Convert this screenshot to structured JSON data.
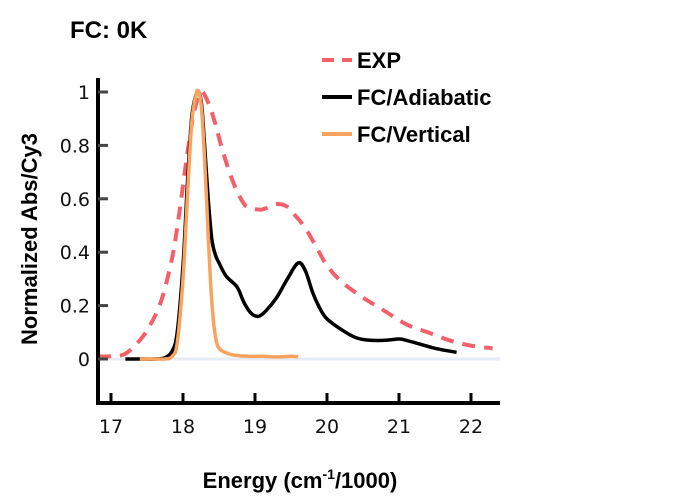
{
  "chart_data": {
    "type": "line",
    "title": "FC: 0K",
    "xlabel": "Energy (cm",
    "xlabel_sup": "-1",
    "xlabel_tail": "/1000)",
    "ylabel": "Normalized Abs/Cy3",
    "xlim": [
      16.82,
      22.4
    ],
    "ylim": [
      -0.16,
      1.05
    ],
    "xticks": [
      17,
      18,
      19,
      20,
      21,
      22
    ],
    "xtick_labels": [
      "17",
      "18",
      "19",
      "20",
      "21",
      "22"
    ],
    "yticks": [
      0,
      0.2,
      0.4,
      0.6,
      0.8,
      1
    ],
    "ytick_labels": [
      "0",
      "0.2",
      "0.4",
      "0.6",
      "0.8",
      "1"
    ],
    "grid": false,
    "zero_line": true,
    "legend_position": "top-right",
    "series": [
      {
        "name": "EXP",
        "color": "#f4606a",
        "style": "dashed",
        "x": [
          16.82,
          17.0,
          17.2,
          17.4,
          17.55,
          17.7,
          17.85,
          17.95,
          18.05,
          18.15,
          18.25,
          18.35,
          18.45,
          18.55,
          18.7,
          18.85,
          18.95,
          19.1,
          19.3,
          19.45,
          19.55,
          19.7,
          19.85,
          20.0,
          20.2,
          20.5,
          20.8,
          21.1,
          21.4,
          21.7,
          22.0,
          22.3
        ],
        "y": [
          0.01,
          0.01,
          0.02,
          0.07,
          0.13,
          0.22,
          0.38,
          0.55,
          0.75,
          0.92,
          1.0,
          0.96,
          0.88,
          0.78,
          0.66,
          0.58,
          0.565,
          0.56,
          0.58,
          0.57,
          0.54,
          0.49,
          0.42,
          0.35,
          0.29,
          0.23,
          0.18,
          0.13,
          0.1,
          0.07,
          0.05,
          0.04
        ]
      },
      {
        "name": "FC/Adiabatic",
        "color": "#000000",
        "style": "solid",
        "x": [
          17.2,
          17.4,
          17.6,
          17.75,
          17.85,
          17.92,
          18.0,
          18.06,
          18.12,
          18.18,
          18.22,
          18.26,
          18.3,
          18.35,
          18.4,
          18.45,
          18.5,
          18.6,
          18.75,
          18.85,
          18.95,
          19.05,
          19.15,
          19.3,
          19.45,
          19.6,
          19.7,
          19.8,
          19.9,
          20.0,
          20.2,
          20.4,
          20.6,
          20.8,
          21.0,
          21.1,
          21.3,
          21.5,
          21.8
        ],
        "y": [
          0.0,
          0.0,
          0.0,
          0.005,
          0.03,
          0.1,
          0.35,
          0.65,
          0.9,
          0.99,
          1.0,
          0.95,
          0.8,
          0.6,
          0.45,
          0.39,
          0.36,
          0.31,
          0.27,
          0.21,
          0.17,
          0.16,
          0.18,
          0.23,
          0.3,
          0.36,
          0.33,
          0.25,
          0.19,
          0.15,
          0.11,
          0.08,
          0.07,
          0.07,
          0.075,
          0.07,
          0.055,
          0.04,
          0.025
        ]
      },
      {
        "name": "FC/Vertical",
        "color": "#f9a35e",
        "style": "solid",
        "x": [
          17.4,
          17.6,
          17.75,
          17.85,
          17.92,
          18.0,
          18.06,
          18.12,
          18.18,
          18.22,
          18.26,
          18.3,
          18.34,
          18.38,
          18.42,
          18.46,
          18.5,
          18.58,
          18.7,
          18.9,
          19.1,
          19.3,
          19.5,
          19.6
        ],
        "y": [
          0.0,
          0.0,
          0.0,
          0.01,
          0.06,
          0.3,
          0.6,
          0.88,
          0.99,
          1.0,
          0.93,
          0.75,
          0.52,
          0.3,
          0.15,
          0.07,
          0.04,
          0.025,
          0.015,
          0.01,
          0.01,
          0.008,
          0.01,
          0.008
        ]
      }
    ]
  }
}
